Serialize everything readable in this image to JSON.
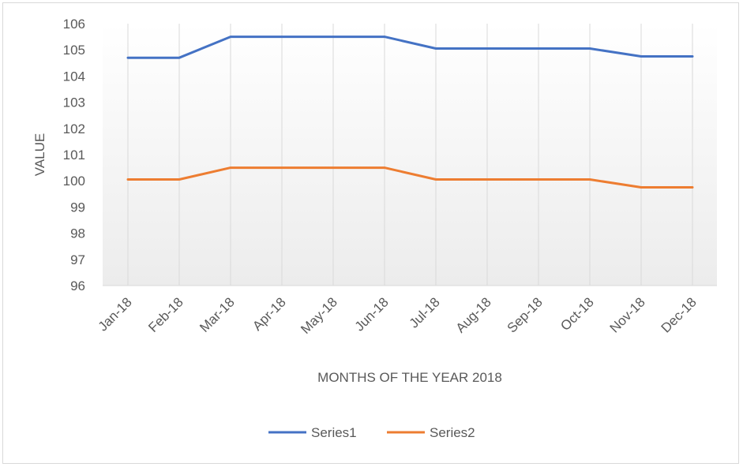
{
  "chart_data": {
    "type": "line",
    "categories": [
      "Jan-18",
      "Feb-18",
      "Mar-18",
      "Apr-18",
      "May-18",
      "Jun-18",
      "Jul-18",
      "Aug-18",
      "Sep-18",
      "Oct-18",
      "Nov-18",
      "Dec-18"
    ],
    "series": [
      {
        "name": "Series1",
        "color": "#4472c4",
        "values": [
          104.7,
          104.7,
          105.5,
          105.5,
          105.5,
          105.5,
          105.05,
          105.05,
          105.05,
          105.05,
          104.75,
          104.75
        ]
      },
      {
        "name": "Series2",
        "color": "#ed7d31",
        "values": [
          100.05,
          100.05,
          100.5,
          100.5,
          100.5,
          100.5,
          100.05,
          100.05,
          100.05,
          100.05,
          99.75,
          99.75
        ]
      }
    ],
    "title": "",
    "xlabel": "MONTHS OF THE YEAR 2018",
    "ylabel": "VALUE",
    "ylim": [
      96,
      106
    ],
    "yticks": [
      "96",
      "97",
      "98",
      "99",
      "100",
      "101",
      "102",
      "103",
      "104",
      "105",
      "106"
    ],
    "grid": "vertical",
    "legend_position": "bottom"
  }
}
